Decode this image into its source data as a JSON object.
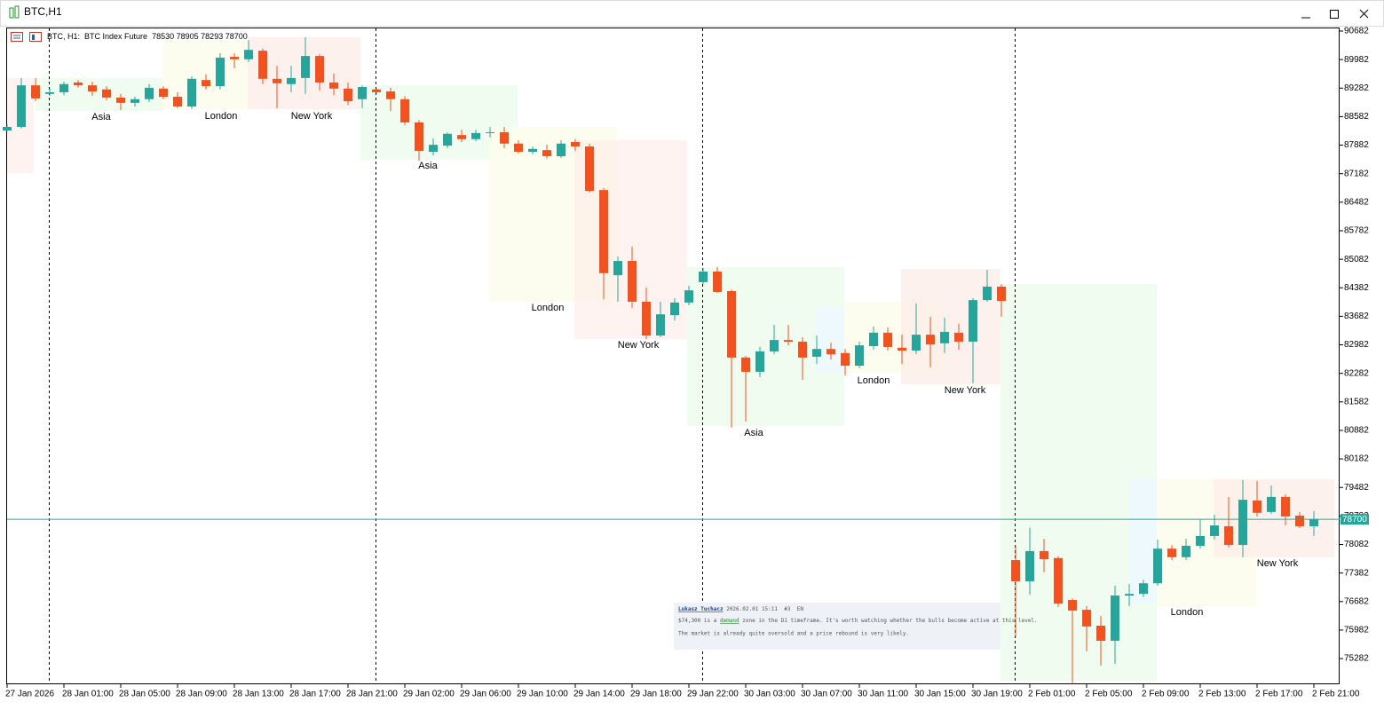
{
  "window_title": "BTC,H1",
  "chart_data": {
    "type": "candlestick",
    "title": "BTC, H1:",
    "subtitle": "BTC Index Future",
    "up_color": "#26a69a",
    "down_color": "#f4511e",
    "categories": [
      "27 Jan 2026",
      null,
      null,
      null,
      "28 Jan 01:00",
      null,
      null,
      null,
      "28 Jan 05:00",
      null,
      null,
      null,
      "28 Jan 09:00",
      null,
      null,
      null,
      "28 Jan 13:00",
      null,
      null,
      null,
      "28 Jan 17:00",
      null,
      null,
      null,
      "28 Jan 21:00",
      null,
      null,
      null,
      "29 Jan 02:00",
      null,
      null,
      null,
      "29 Jan 06:00",
      null,
      null,
      null,
      "29 Jan 10:00",
      null,
      null,
      null,
      "29 Jan 14:00",
      null,
      null,
      null,
      "29 Jan 18:00",
      null,
      null,
      null,
      "29 Jan 22:00",
      null,
      null,
      null,
      "30 Jan 03:00",
      null,
      null,
      null,
      "30 Jan 07:00",
      null,
      null,
      null,
      "30 Jan 11:00",
      null,
      null,
      null,
      "30 Jan 15:00",
      null,
      null,
      null,
      "30 Jan 19:00",
      null,
      null,
      null,
      "2 Feb 01:00",
      null,
      null,
      null,
      "2 Feb 05:00",
      null,
      null,
      null,
      "2 Feb 09:00",
      null,
      null,
      null,
      "2 Feb 13:00",
      null,
      null,
      null,
      "2 Feb 17:00",
      null,
      null,
      null,
      "2 Feb 21:00"
    ],
    "open": [
      88240,
      88330,
      89350,
      89140,
      89180,
      89420,
      89350,
      89250,
      89050,
      88920,
      89010,
      89270,
      89070,
      88830,
      89480,
      89330,
      90050,
      89990,
      90200,
      89510,
      89380,
      89530,
      90070,
      89420,
      89270,
      89010,
      89250,
      89200,
      89010,
      88440,
      87720,
      87870,
      88130,
      88030,
      88180,
      88200,
      87920,
      87720,
      87760,
      87610,
      87960,
      87850,
      86780,
      84690,
      85040,
      84040,
      83210,
      83710,
      84020,
      84520,
      84780,
      84300,
      82670,
      82320,
      82820,
      83100,
      83060,
      82690,
      82880,
      82780,
      82470,
      82950,
      83280,
      82910,
      82840,
      83230,
      83020,
      83280,
      83060,
      84080,
      84410,
      77700,
      77180,
      77920,
      77750,
      76720,
      76480,
      76090,
      75720,
      76830,
      76870,
      77130,
      77980,
      77770,
      78050,
      78290,
      78530,
      78070,
      79160,
      78880,
      79250,
      78790,
      78530
    ],
    "high": [
      88400,
      89530,
      89530,
      89270,
      89440,
      89480,
      89440,
      89330,
      89140,
      89070,
      89380,
      89330,
      89180,
      89570,
      89620,
      90140,
      90140,
      90460,
      90250,
      89830,
      89830,
      90530,
      90120,
      89640,
      89420,
      89350,
      89290,
      89290,
      89090,
      88500,
      88050,
      88200,
      88260,
      88260,
      88330,
      88330,
      88000,
      87850,
      87890,
      88000,
      88030,
      87920,
      86830,
      85150,
      85390,
      84390,
      84040,
      84130,
      84430,
      84870,
      84890,
      84340,
      82710,
      82930,
      83470,
      83470,
      83170,
      83210,
      83040,
      82880,
      83060,
      83430,
      83410,
      83230,
      84000,
      83670,
      83650,
      83500,
      84130,
      84820,
      84470,
      78070,
      78490,
      78220,
      77790,
      76760,
      76570,
      76330,
      77070,
      77110,
      77220,
      78200,
      78070,
      78220,
      78700,
      78810,
      79250,
      79660,
      79640,
      79530,
      79310,
      78880,
      78905
    ],
    "low": [
      88220,
      88290,
      88960,
      89090,
      89110,
      89290,
      89090,
      88980,
      88740,
      88830,
      88940,
      89010,
      88790,
      88770,
      89250,
      89250,
      89770,
      89920,
      89380,
      88790,
      89180,
      89140,
      89220,
      89110,
      88870,
      88790,
      89140,
      88720,
      88370,
      87500,
      87630,
      87810,
      87960,
      87980,
      88070,
      87810,
      87680,
      87660,
      87550,
      87570,
      87740,
      86720,
      84100,
      84040,
      83890,
      83120,
      83170,
      83580,
      83950,
      84470,
      84260,
      80950,
      81100,
      82190,
      82750,
      82970,
      82120,
      82510,
      82620,
      82230,
      82410,
      82860,
      82840,
      82510,
      82750,
      82430,
      82780,
      82860,
      82040,
      84040,
      83670,
      75810,
      76850,
      77400,
      76550,
      74670,
      75460,
      75110,
      75150,
      76570,
      76790,
      77070,
      77700,
      77700,
      77980,
      78200,
      78010,
      77770,
      78770,
      78830,
      78550,
      78490,
      78293
    ],
    "close": [
      88330,
      89350,
      89030,
      89180,
      89380,
      89350,
      89200,
      89050,
      88920,
      89010,
      89290,
      89070,
      88830,
      89510,
      89330,
      90030,
      89990,
      90220,
      89510,
      89400,
      89530,
      90070,
      89420,
      89270,
      88960,
      89310,
      89180,
      89010,
      88440,
      87740,
      87890,
      88160,
      88030,
      88180,
      88200,
      87920,
      87720,
      87790,
      87610,
      87920,
      87850,
      86760,
      84740,
      85040,
      84040,
      83210,
      83730,
      84020,
      84320,
      84780,
      84280,
      82670,
      82320,
      82820,
      83100,
      83060,
      82670,
      82880,
      82750,
      82470,
      82970,
      83280,
      82930,
      82840,
      83230,
      82990,
      83300,
      83060,
      84080,
      84410,
      84060,
      77180,
      77920,
      77720,
      76630,
      76460,
      76070,
      75720,
      76830,
      76870,
      77130,
      77980,
      77770,
      78050,
      78290,
      78550,
      78070,
      79180,
      78860,
      79250,
      78770,
      78530,
      78700
    ],
    "ylim": [
      74652,
      90769
    ],
    "yticks": [
      90682,
      89982,
      89282,
      88582,
      87882,
      87182,
      86482,
      85782,
      85082,
      84382,
      83682,
      82982,
      82282,
      81582,
      80882,
      80182,
      79482,
      78782,
      78082,
      77382,
      76682,
      75982,
      75282
    ],
    "grid": false,
    "sessions": [
      "Asia",
      "London",
      "New York",
      "Asia",
      "London",
      "New York",
      "Asia",
      "London",
      "New York",
      "London",
      "New York"
    ],
    "comment": {
      "author": "Lukasz Tuchacz",
      "date": "2026.02.01 15:11",
      "number": "#3",
      "lang": "EN",
      "line1_a": "$74,300 is a",
      "line1_link": "demand",
      "line1_b": "zone in the D1 timeframe. It's worth watching whether the bulls become active at this level.",
      "line2": "The market is already quite oversold and a price rebound is very likely."
    }
  }
}
